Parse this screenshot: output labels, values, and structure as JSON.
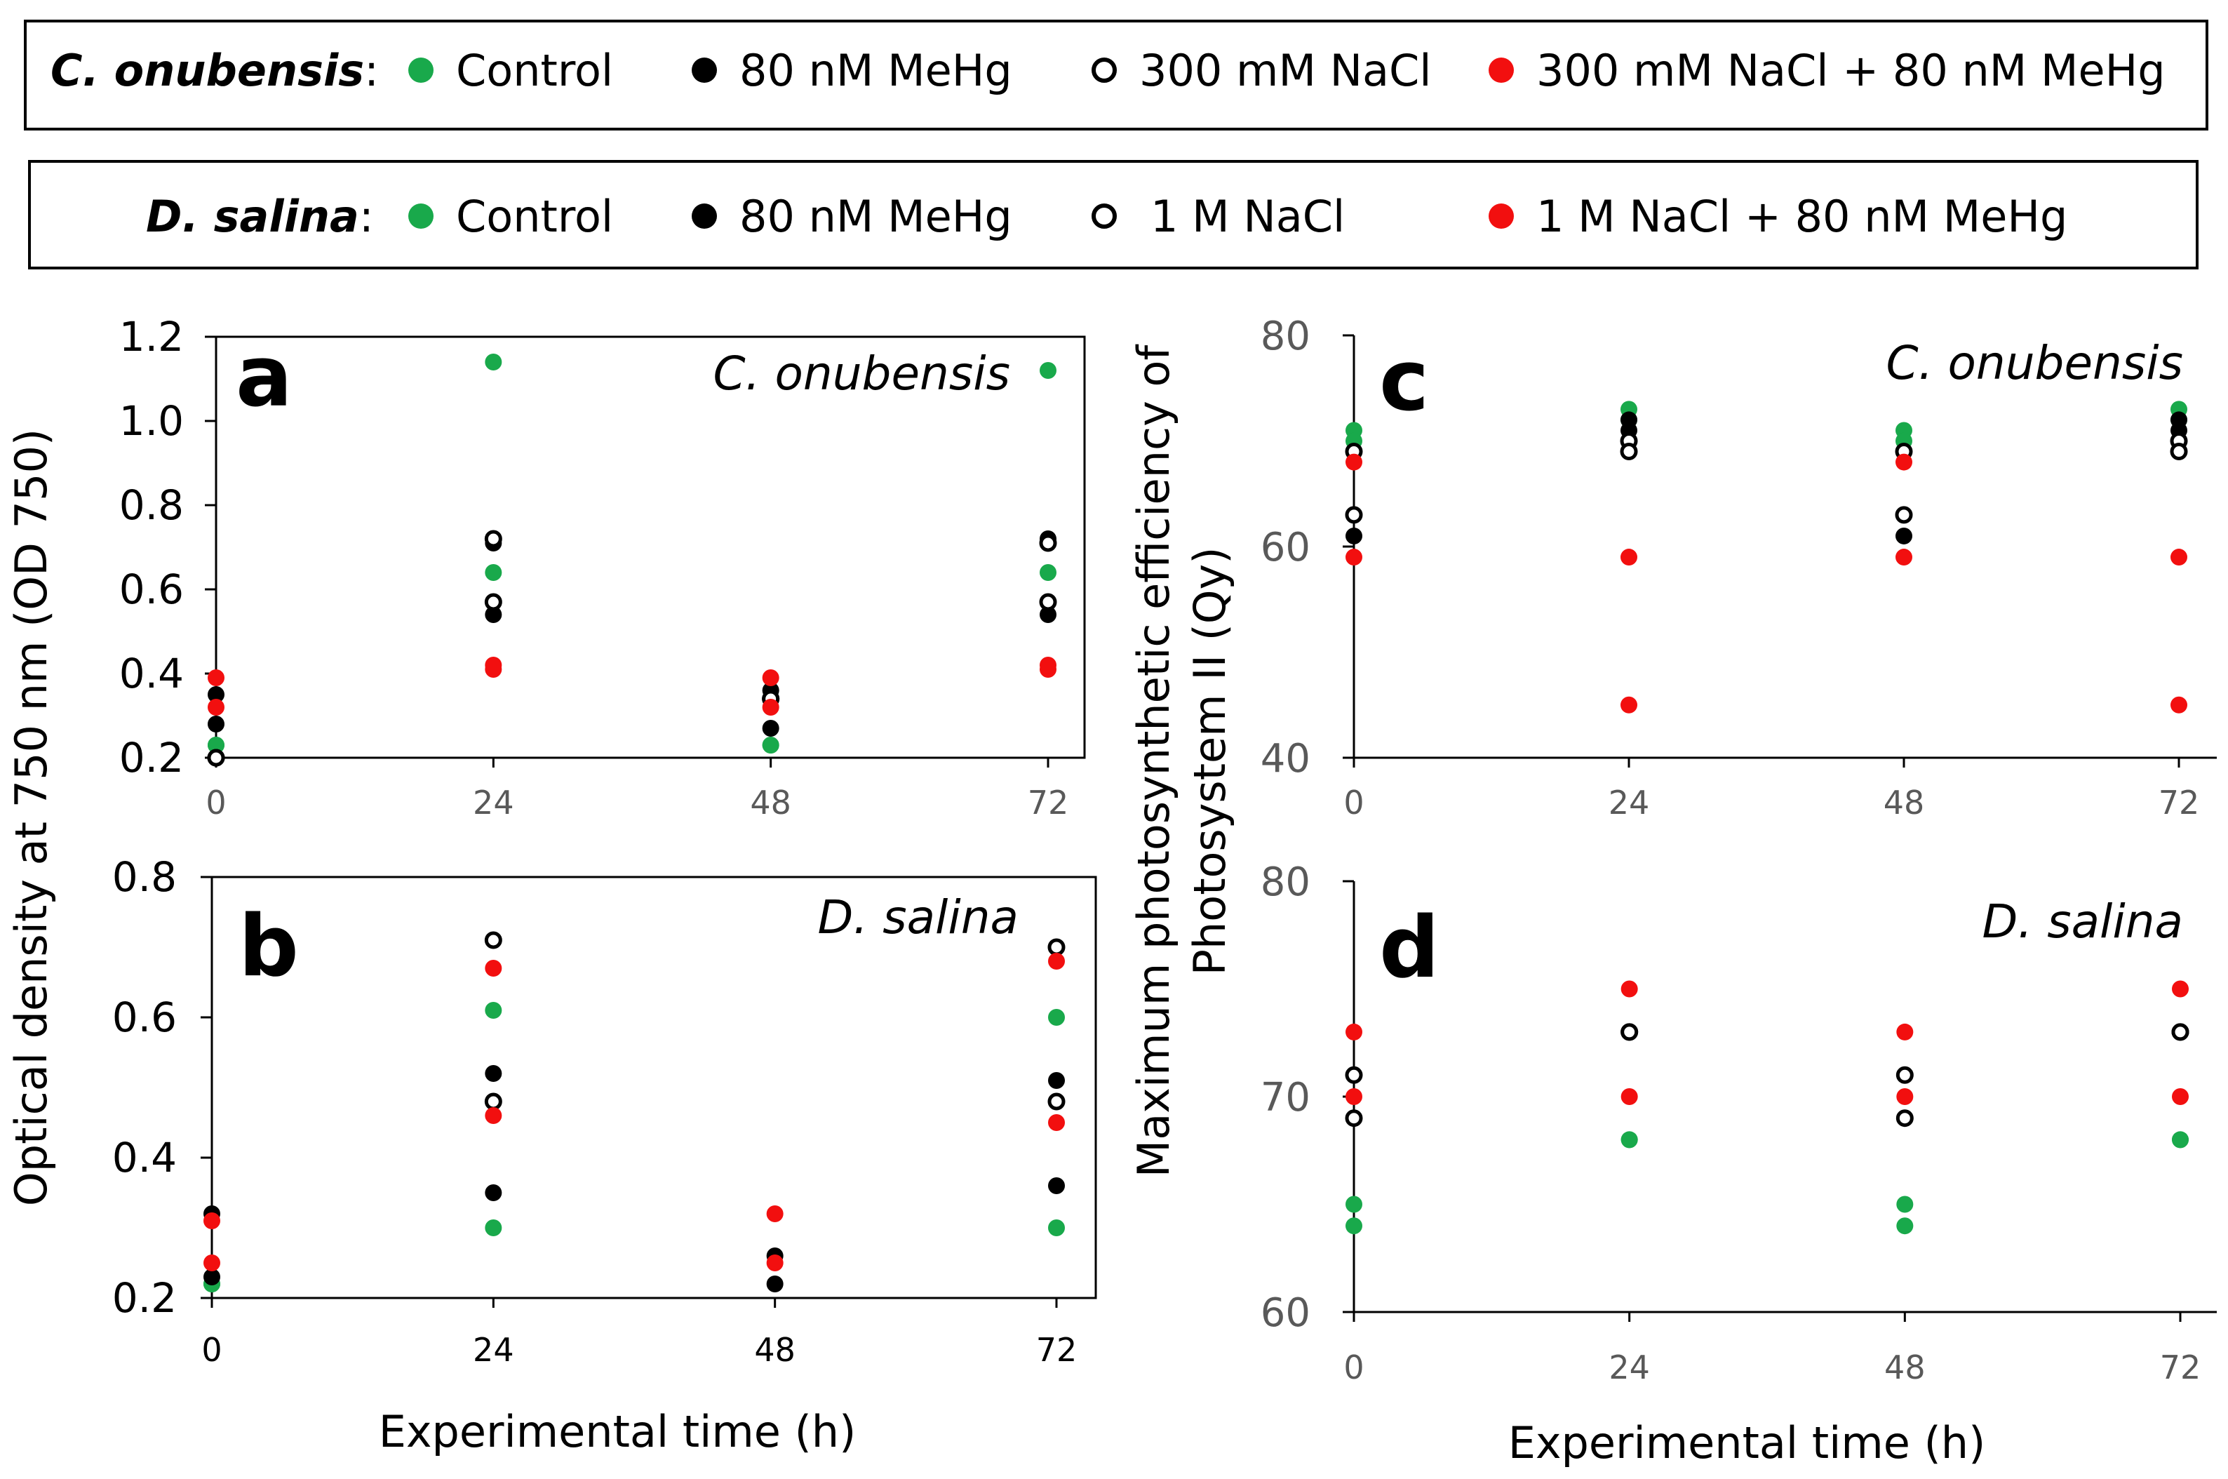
{
  "legends": [
    {
      "species": "C. onubensis",
      "suffix": ":",
      "entries": [
        {
          "label": "Control",
          "color": "#19a94b",
          "filled": true
        },
        {
          "label": "80 nM MeHg",
          "color": "#000000",
          "filled": true
        },
        {
          "label": "300 mM NaCl",
          "color": "#000000",
          "filled": false
        },
        {
          "label": "300 mM NaCl + 80 nM MeHg",
          "color": "#f20f0f",
          "filled": true
        }
      ]
    },
    {
      "species": "D. salina",
      "suffix": ":",
      "entries": [
        {
          "label": "Control",
          "color": "#19a94b",
          "filled": true
        },
        {
          "label": "80 nM MeHg",
          "color": "#000000",
          "filled": true
        },
        {
          "label": "1 M NaCl",
          "color": "#000000",
          "filled": false
        },
        {
          "label": "1 M NaCl + 80 nM MeHg",
          "color": "#f20f0f",
          "filled": true
        }
      ]
    }
  ],
  "axis_titles": {
    "left_y": "Optical density at 750 nm (OD 750)",
    "right_y_line1": "Maximum photosynthetic efficiency of",
    "right_y_line2": "Photosystem II (Qy)",
    "x_left": "Experimental time (h)",
    "x_right": "Experimental time (h)"
  },
  "chart_data": [
    {
      "panel": "a",
      "type": "scatter",
      "title": "C. onubensis",
      "xlabel": "Experimental time (h)",
      "ylabel": "Optical density at 750 nm (OD 750)",
      "x_ticks": [
        "0",
        "24",
        "48",
        "72"
      ],
      "y_ticks": [
        "0.2",
        "0.4",
        "0.6",
        "0.8",
        "1.0",
        "1.2"
      ],
      "xlim": [
        0,
        72
      ],
      "ylim": [
        0.2,
        1.2
      ],
      "series": [
        {
          "name": "Control",
          "x": [
            0,
            24,
            48,
            72
          ],
          "values": [
            0.23,
            1.14,
            0.23,
            1.12
          ]
        },
        {
          "name": "Control (replicate)",
          "x": [
            0,
            24,
            48,
            72
          ],
          "values": [
            0.23,
            0.64,
            0.23,
            0.64
          ]
        },
        {
          "name": "80 nM MeHg",
          "x": [
            0,
            24,
            48,
            72
          ],
          "values": [
            0.28,
            0.54,
            0.27,
            0.54
          ]
        },
        {
          "name": "80 nM MeHg (replicate)",
          "x": [
            0,
            24,
            48,
            72
          ],
          "values": [
            0.35,
            0.71,
            0.36,
            0.72
          ]
        },
        {
          "name": "300 mM NaCl",
          "x": [
            0,
            24,
            48,
            72
          ],
          "values": [
            0.2,
            0.57,
            0.34,
            0.57
          ]
        },
        {
          "name": "300 mM NaCl (replicate)",
          "x": [
            0,
            24,
            48,
            72
          ],
          "values": [
            0.2,
            0.72,
            0.34,
            0.71
          ]
        },
        {
          "name": "300 mM NaCl + 80 nM MeHg",
          "x": [
            0,
            24,
            48,
            72
          ],
          "values": [
            0.32,
            0.41,
            0.32,
            0.41
          ]
        },
        {
          "name": "300 mM NaCl + 80 nM MeHg (replicate)",
          "x": [
            0,
            24,
            48,
            72
          ],
          "values": [
            0.39,
            0.42,
            0.39,
            0.42
          ]
        }
      ]
    },
    {
      "panel": "b",
      "type": "scatter",
      "title": "D. salina",
      "xlabel": "Experimental time (h)",
      "ylabel": "Optical density at 750 nm (OD 750)",
      "x_ticks": [
        "0",
        "24",
        "48",
        "72"
      ],
      "y_ticks": [
        "0.2",
        "0.4",
        "0.6",
        "0.8"
      ],
      "xlim": [
        0,
        72
      ],
      "ylim": [
        0.2,
        0.8
      ],
      "series": [
        {
          "name": "Control",
          "x": [
            0,
            24,
            72
          ],
          "values": [
            0.22,
            0.61,
            0.6
          ]
        },
        {
          "name": "Control (replicate)",
          "x": [
            0,
            24,
            72
          ],
          "values": [
            0.22,
            0.3,
            0.3
          ]
        },
        {
          "name": "80 nM MeHg",
          "x": [
            0,
            24,
            48,
            72
          ],
          "values": [
            0.32,
            0.52,
            0.26,
            0.51
          ]
        },
        {
          "name": "80 nM MeHg (replicate)",
          "x": [
            0,
            24,
            48,
            72
          ],
          "values": [
            0.23,
            0.35,
            0.22,
            0.36
          ]
        },
        {
          "name": "1 M NaCl",
          "x": [
            24,
            72
          ],
          "values": [
            0.71,
            0.7
          ]
        },
        {
          "name": "1 M NaCl (replicate)",
          "x": [
            24,
            72
          ],
          "values": [
            0.48,
            0.48
          ]
        },
        {
          "name": "1 M NaCl + 80 nM MeHg",
          "x": [
            0,
            24,
            48,
            72
          ],
          "values": [
            0.31,
            0.67,
            0.32,
            0.68
          ]
        },
        {
          "name": "1 M NaCl + 80 nM MeHg (replicate)",
          "x": [
            0,
            24,
            48,
            72
          ],
          "values": [
            0.25,
            0.46,
            0.25,
            0.45
          ]
        }
      ]
    },
    {
      "panel": "c",
      "type": "scatter",
      "title": "C. onubensis",
      "xlabel": "Experimental time (h)",
      "ylabel": "Maximum photosynthetic efficiency of Photosystem II (Qy)",
      "x_ticks": [
        "0",
        "24",
        "48",
        "72"
      ],
      "y_ticks": [
        "40",
        "60",
        "80"
      ],
      "xlim": [
        0,
        72
      ],
      "ylim": [
        40,
        80
      ],
      "series": [
        {
          "name": "Control",
          "x": [
            0,
            24,
            48,
            72
          ],
          "values": [
            71,
            73,
            71,
            73
          ]
        },
        {
          "name": "Control (replicate)",
          "x": [
            0,
            24,
            48,
            72
          ],
          "values": [
            70,
            72,
            70,
            72
          ]
        },
        {
          "name": "80 nM MeHg",
          "x": [
            0,
            24,
            48,
            72
          ],
          "values": [
            61,
            72,
            61,
            72
          ]
        },
        {
          "name": "80 nM MeHg (replicate)",
          "x": [
            0,
            24,
            48,
            72
          ],
          "values": [
            69,
            71,
            69,
            71
          ]
        },
        {
          "name": "300 mM NaCl",
          "x": [
            0,
            24,
            48,
            72
          ],
          "values": [
            63,
            70,
            63,
            70
          ]
        },
        {
          "name": "300 mM NaCl (replicate)",
          "x": [
            0,
            24,
            48,
            72
          ],
          "values": [
            69,
            69,
            69,
            69
          ]
        },
        {
          "name": "300 mM NaCl + 80 nM MeHg",
          "x": [
            0,
            24,
            48,
            72
          ],
          "values": [
            68,
            59,
            68,
            59
          ]
        },
        {
          "name": "300 mM NaCl + 80 nM MeHg (replicate)",
          "x": [
            0,
            24,
            48,
            72
          ],
          "values": [
            59,
            45,
            59,
            45
          ]
        }
      ]
    },
    {
      "panel": "d",
      "type": "scatter",
      "title": "D. salina",
      "xlabel": "Experimental time (h)",
      "ylabel": "Maximum photosynthetic efficiency of Photosystem II (Qy)",
      "x_ticks": [
        "0",
        "24",
        "48",
        "72"
      ],
      "y_ticks": [
        "60",
        "70",
        "80"
      ],
      "xlim": [
        0,
        72
      ],
      "ylim": [
        60,
        80
      ],
      "series": [
        {
          "name": "Control",
          "x": [
            0,
            24,
            48,
            72
          ],
          "values": [
            65,
            68,
            65,
            68
          ]
        },
        {
          "name": "Control (replicate)",
          "x": [
            0,
            24,
            48,
            72
          ],
          "values": [
            64,
            68,
            64,
            68
          ]
        },
        {
          "name": "80 nM MeHg",
          "x": [
            0,
            24,
            48,
            72
          ],
          "values": [
            71,
            73,
            71,
            73
          ]
        },
        {
          "name": "80 nM MeHg (replicate)",
          "x": [
            0,
            24,
            48,
            72
          ],
          "values": [
            69,
            73,
            69,
            73
          ]
        },
        {
          "name": "1 M NaCl",
          "x": [
            0,
            24,
            48,
            72
          ],
          "values": [
            71,
            73,
            71,
            73
          ]
        },
        {
          "name": "1 M NaCl (replicate)",
          "x": [
            0,
            24,
            48,
            72
          ],
          "values": [
            69,
            73,
            69,
            73
          ]
        },
        {
          "name": "1 M NaCl + 80 nM MeHg",
          "x": [
            0,
            24,
            48,
            72
          ],
          "values": [
            73,
            75,
            73,
            75
          ]
        },
        {
          "name": "1 M NaCl + 80 nM MeHg (replicate)",
          "x": [
            0,
            24,
            48,
            72
          ],
          "values": [
            70,
            70,
            70,
            70
          ]
        }
      ]
    }
  ]
}
